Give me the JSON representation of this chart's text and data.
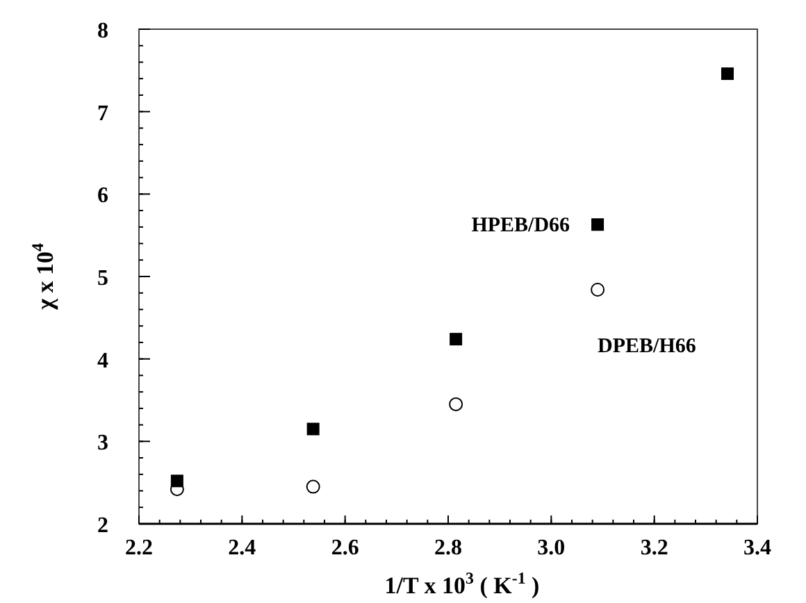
{
  "chart_data": {
    "type": "scatter",
    "xlabel": "1/T x 10$^{3}$  ( K$^{-1}$ )",
    "ylabel": "χ x 10$^{4}$",
    "xlim": [
      2.2,
      3.4
    ],
    "xticks": [
      {
        "value": 2.2,
        "label": "2.2"
      },
      {
        "value": 2.4,
        "label": "2.4"
      },
      {
        "value": 2.6,
        "label": "2.6"
      },
      {
        "value": 2.8,
        "label": "2.8"
      },
      {
        "value": 3.0,
        "label": "3.0"
      },
      {
        "value": 3.2,
        "label": "3.2"
      },
      {
        "value": 3.4,
        "label": "3.4"
      }
    ],
    "ylim": [
      2,
      8
    ],
    "yticks": [
      2,
      3,
      4,
      5,
      6,
      7,
      8
    ],
    "grid": false,
    "series": [
      {
        "name": "HPEB/D66",
        "color": "#000000",
        "marker": "square",
        "x": [
          2.274,
          2.538,
          2.815,
          3.09,
          3.342
        ],
        "values": [
          2.52,
          3.15,
          4.24,
          5.63,
          7.46
        ]
      },
      {
        "name": "DPEB/H66",
        "color": "#000000",
        "marker": "circle",
        "x": [
          2.274,
          2.538,
          2.815,
          3.09
        ],
        "values": [
          2.42,
          2.45,
          3.45,
          4.84
        ]
      }
    ]
  }
}
